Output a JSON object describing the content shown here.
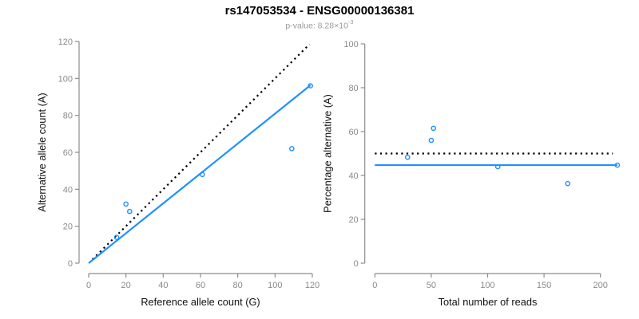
{
  "header": {
    "title": "rs147053534 - ENSG00000136381",
    "pvalue": {
      "text": "p-value: 8.28×10",
      "exponent": "-3"
    }
  },
  "colors": {
    "accent_blue": "#1E90FF",
    "line_black": "#000000",
    "axis_gray": "#8C8C8C"
  },
  "chart_data": [
    {
      "type": "scatter",
      "title": "",
      "xlabel": "Reference allele count (G)",
      "ylabel": "Alternative allele count (A)",
      "xlim": [
        0,
        120
      ],
      "ylim": [
        0,
        120
      ],
      "xticks": [
        0,
        20,
        40,
        60,
        80,
        100,
        120
      ],
      "yticks": [
        0,
        20,
        40,
        60,
        80,
        100,
        120
      ],
      "grid": false,
      "points": {
        "x": [
          15,
          20,
          22,
          61,
          109,
          119
        ],
        "y": [
          14,
          32,
          28,
          48,
          62,
          96
        ]
      },
      "point_color": "#1E90FF",
      "lines": [
        {
          "name": "identity-line",
          "style": "dotted",
          "color": "#000000",
          "x": [
            2,
            118.5
          ],
          "y": [
            2,
            118.5
          ]
        },
        {
          "name": "regression-line",
          "style": "solid",
          "color": "#1E90FF",
          "x": [
            0,
            119
          ],
          "y": [
            0,
            96.3
          ]
        }
      ]
    },
    {
      "type": "scatter",
      "title": "",
      "xlabel": "Total number of reads",
      "ylabel": "Percentage alternative (A)",
      "xlim": [
        0,
        200
      ],
      "ylim": [
        0,
        100
      ],
      "xticks": [
        0,
        50,
        100,
        150,
        200
      ],
      "yticks": [
        0,
        20,
        40,
        60,
        80,
        100
      ],
      "grid": false,
      "points": {
        "x": [
          29,
          52,
          50,
          109,
          171,
          215
        ],
        "y": [
          48.3,
          61.5,
          56.0,
          44.0,
          36.3,
          44.7
        ]
      },
      "point_color": "#1E90FF",
      "lines": [
        {
          "name": "expected-50-percent-line",
          "style": "dotted",
          "color": "#000000",
          "x": [
            0,
            211
          ],
          "y": [
            50,
            50
          ]
        },
        {
          "name": "mean-percentage-line",
          "style": "solid",
          "color": "#1E90FF",
          "x": [
            0,
            215
          ],
          "y": [
            44.7,
            44.7
          ]
        }
      ]
    }
  ]
}
